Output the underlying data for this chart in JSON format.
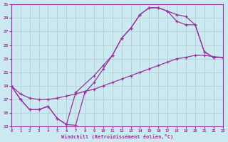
{
  "xlabel": "Windchill (Refroidissement éolien,°C)",
  "bg_color": "#cce8f0",
  "line_color": "#993399",
  "grid_color": "#aacccc",
  "xlim": [
    0,
    23
  ],
  "ylim": [
    13,
    31
  ],
  "xticks": [
    0,
    1,
    2,
    3,
    4,
    5,
    6,
    7,
    8,
    9,
    10,
    11,
    12,
    13,
    14,
    15,
    16,
    17,
    18,
    19,
    20,
    21,
    22,
    23
  ],
  "yticks": [
    13,
    15,
    17,
    19,
    21,
    23,
    25,
    27,
    29,
    31
  ],
  "curve1_x": [
    0,
    1,
    2,
    3,
    4,
    5,
    6,
    7,
    8,
    9,
    10,
    11,
    12,
    13,
    14,
    15,
    16,
    17,
    18,
    19,
    20,
    21,
    22,
    23
  ],
  "curve1_y": [
    19,
    17,
    15.5,
    15.5,
    16.0,
    14.2,
    13.3,
    13.2,
    18.0,
    19.5,
    21.5,
    23.5,
    26.0,
    27.5,
    29.5,
    30.5,
    30.5,
    30.0,
    29.5,
    29.2,
    28.0,
    24.0,
    23.2,
    23.2
  ],
  "curve2_x": [
    0,
    1,
    2,
    3,
    4,
    5,
    6,
    7,
    9,
    10,
    11,
    12,
    13,
    14,
    15,
    16,
    17,
    18,
    19,
    20,
    21,
    22,
    23
  ],
  "curve2_y": [
    19,
    17,
    15.5,
    15.5,
    16.0,
    14.2,
    13.3,
    18.0,
    20.5,
    22.0,
    23.5,
    26.0,
    27.5,
    29.5,
    30.5,
    30.5,
    30.0,
    28.5,
    28.0,
    28.0,
    24.0,
    23.2,
    23.2
  ],
  "curve3_x": [
    0,
    1,
    2,
    3,
    4,
    5,
    6,
    7,
    8,
    9,
    10,
    11,
    12,
    13,
    14,
    15,
    16,
    17,
    18,
    19,
    20,
    21,
    22,
    23
  ],
  "curve3_y": [
    19,
    17.8,
    17.2,
    17.0,
    17.0,
    17.2,
    17.5,
    17.8,
    18.2,
    18.5,
    19.0,
    19.5,
    20.0,
    20.5,
    21.0,
    21.5,
    22.0,
    22.5,
    23.0,
    23.2,
    23.5,
    23.5,
    23.3,
    23.2
  ]
}
